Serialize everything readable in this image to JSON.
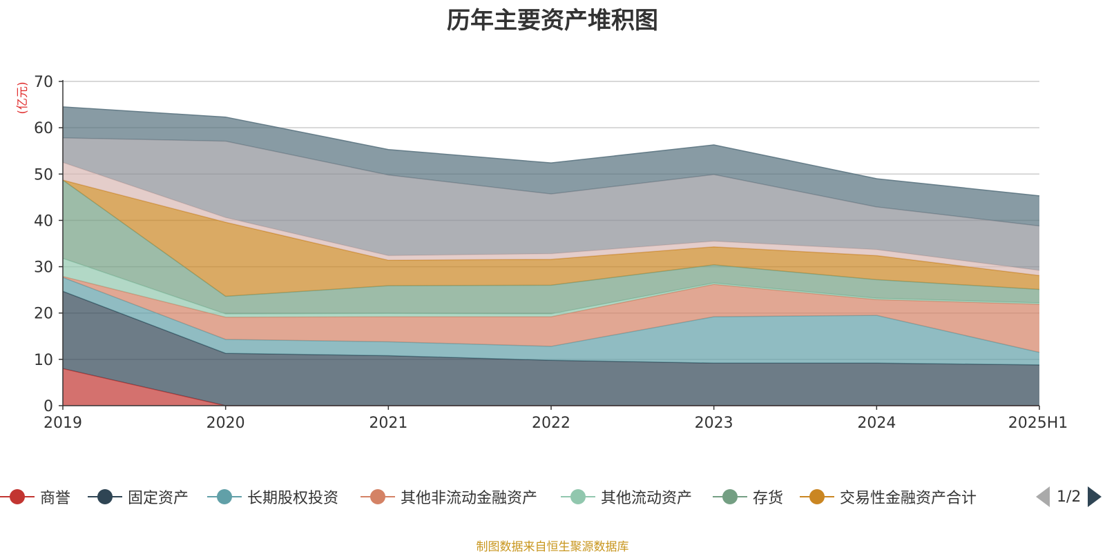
{
  "title": "历年主要资产堆积图",
  "unit_label": "(亿元)",
  "source_note": "制图数据来自恒生聚源数据库",
  "pager": {
    "text": "1/2"
  },
  "legend": [
    {
      "name": "商誉",
      "color": "#c23531"
    },
    {
      "name": "固定资产",
      "color": "#2f4554"
    },
    {
      "name": "长期股权投资",
      "color": "#61a0a8"
    },
    {
      "name": "其他非流动金融资产",
      "color": "#d48265"
    },
    {
      "name": "其他流动资产",
      "color": "#91c7ae"
    },
    {
      "name": "存货",
      "color": "#749f83"
    },
    {
      "name": "交易性金融资产合计",
      "color": "#ca8622"
    }
  ],
  "chart_data": {
    "type": "area",
    "stacked": true,
    "title": "历年主要资产堆积图",
    "ylabel": "(亿元)",
    "x": [
      "2019",
      "2020",
      "2021",
      "2022",
      "2023",
      "2024",
      "2025H1"
    ],
    "ylim": [
      0,
      70
    ],
    "yticks": [
      0,
      10,
      20,
      30,
      40,
      50,
      60,
      70
    ],
    "grid": true,
    "legend_position": "bottom",
    "series": [
      {
        "name": "商誉",
        "color": "#c23531",
        "values": [
          8.0,
          0,
          0,
          0,
          0,
          0,
          0
        ]
      },
      {
        "name": "固定资产",
        "color": "#2f4554",
        "values": [
          16.7,
          11.3,
          10.8,
          9.8,
          9.2,
          9.2,
          8.8
        ]
      },
      {
        "name": "长期股权投资",
        "color": "#61a0a8",
        "values": [
          3.0,
          3.0,
          3.0,
          3.0,
          10.0,
          10.3,
          2.7
        ]
      },
      {
        "name": "其他非流动金融资产",
        "color": "#d48265",
        "values": [
          0.2,
          4.8,
          5.4,
          6.4,
          7.0,
          3.4,
          10.4
        ]
      },
      {
        "name": "其他流动资产",
        "color": "#91c7ae",
        "values": [
          3.9,
          0.7,
          0.7,
          0.6,
          0.3,
          0.3,
          0.3
        ]
      },
      {
        "name": "存货",
        "color": "#749f83",
        "values": [
          16.9,
          3.8,
          6.0,
          6.2,
          3.9,
          4.0,
          2.9
        ]
      },
      {
        "name": "交易性金融资产合计",
        "color": "#ca8622",
        "values": [
          0,
          16.0,
          5.5,
          5.6,
          3.9,
          5.2,
          3.0
        ]
      },
      {
        "name": "",
        "color": "#d9b8b4",
        "values": [
          3.8,
          1.0,
          1.0,
          1.2,
          1.2,
          1.3,
          1.1
        ]
      },
      {
        "name": "",
        "color": "#8c8f96",
        "values": [
          5.3,
          16.5,
          17.4,
          12.9,
          14.4,
          9.2,
          9.6
        ]
      },
      {
        "name": "",
        "color": "#56707d",
        "values": [
          6.7,
          5.2,
          5.5,
          6.7,
          6.4,
          6.1,
          6.5
        ]
      }
    ]
  }
}
